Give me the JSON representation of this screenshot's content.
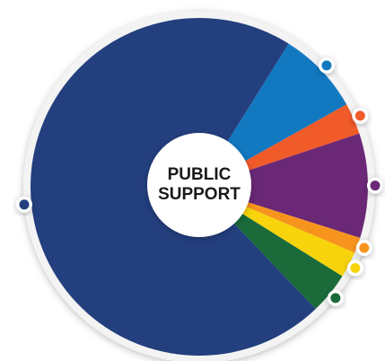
{
  "chart_data": {
    "type": "pie",
    "title": "PUBLIC SUPPORT",
    "values": [
      8,
      3,
      10,
      1.5,
      2.5,
      4,
      71
    ],
    "colors": [
      "#1279c1",
      "#f15a29",
      "#6a2877",
      "#f7941d",
      "#f7d40b",
      "#1a6a3a",
      "#233f7e"
    ]
  }
}
